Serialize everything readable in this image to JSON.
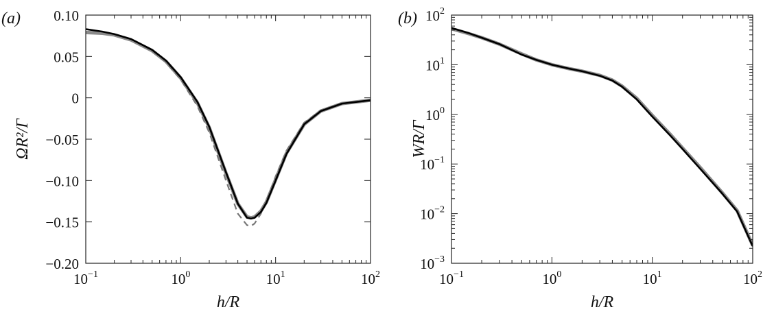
{
  "chart_data": [
    {
      "type": "line",
      "panel_label": "(a)",
      "x_label": "h/R",
      "y_label": "ΩR²/Γ",
      "xscale": "log",
      "yscale": "linear",
      "xlim": [
        0.1,
        100
      ],
      "ylim": [
        -0.2,
        0.1
      ],
      "xticks": [
        {
          "value": 0.1,
          "label": "10",
          "exponent": "−1"
        },
        {
          "value": 1,
          "label": "10",
          "exponent": "0"
        },
        {
          "value": 10,
          "label": "10",
          "exponent": "1"
        },
        {
          "value": 100,
          "label": "10",
          "exponent": "2"
        }
      ],
      "yticks": [
        {
          "value": 0.1,
          "label": "0.10"
        },
        0.05,
        0,
        {
          "value": -0.05,
          "label": "−0.05"
        },
        {
          "value": -0.1,
          "label": "−0.10"
        },
        {
          "value": -0.15,
          "label": "−0.15"
        },
        {
          "value": -0.2,
          "label": "−0.20"
        }
      ],
      "x": [
        0.1,
        0.15,
        0.2,
        0.3,
        0.5,
        0.7,
        1,
        1.5,
        2,
        3,
        4,
        5,
        5.5,
        6,
        7,
        8,
        10,
        13,
        20,
        30,
        50,
        100
      ],
      "series": [
        {
          "color": "#8a8a8a",
          "linestyle": "solid",
          "values": [
            0.079,
            0.078,
            0.076,
            0.07,
            0.057,
            0.044,
            0.024,
            -0.006,
            -0.036,
            -0.091,
            -0.128,
            -0.144,
            -0.145,
            -0.144,
            -0.137,
            -0.126,
            -0.099,
            -0.067,
            -0.032,
            -0.016,
            -0.007,
            -0.003
          ]
        },
        {
          "color": "#777777",
          "linestyle": "dashed",
          "values": [
            0.083,
            0.08,
            0.077,
            0.071,
            0.057,
            0.043,
            0.022,
            -0.01,
            -0.042,
            -0.1,
            -0.14,
            -0.154,
            -0.155,
            -0.152,
            -0.14,
            -0.125,
            -0.095,
            -0.064,
            -0.03,
            -0.015,
            -0.007,
            -0.003
          ]
        },
        {
          "color": "#000000",
          "linestyle": "solid",
          "values": [
            0.083,
            0.08,
            0.077,
            0.071,
            0.058,
            0.045,
            0.025,
            -0.005,
            -0.035,
            -0.09,
            -0.128,
            -0.145,
            -0.146,
            -0.145,
            -0.138,
            -0.127,
            -0.1,
            -0.068,
            -0.032,
            -0.016,
            -0.007,
            -0.003
          ]
        }
      ]
    },
    {
      "type": "line",
      "panel_label": "(b)",
      "x_label": "h/R",
      "y_label": "WR/Γ",
      "xscale": "log",
      "yscale": "log",
      "xlim": [
        0.1,
        100
      ],
      "ylim": [
        0.001,
        100
      ],
      "xticks": [
        {
          "value": 0.1,
          "label": "10",
          "exponent": "−1"
        },
        {
          "value": 1,
          "label": "10",
          "exponent": "0"
        },
        {
          "value": 10,
          "label": "10",
          "exponent": "1"
        },
        {
          "value": 100,
          "label": "10",
          "exponent": "2"
        }
      ],
      "yticks": [
        {
          "value": 100,
          "label": "10",
          "exponent": "2"
        },
        {
          "value": 10,
          "label": "10",
          "exponent": "1"
        },
        {
          "value": 1,
          "label": "10",
          "exponent": "0"
        },
        {
          "value": 0.1,
          "label": "10",
          "exponent": "−1"
        },
        {
          "value": 0.01,
          "label": "10",
          "exponent": "−2"
        },
        {
          "value": 0.001,
          "label": "10",
          "exponent": "−3"
        }
      ],
      "x": [
        0.1,
        0.15,
        0.2,
        0.3,
        0.5,
        0.7,
        1,
        1.5,
        2,
        3,
        4,
        5,
        7,
        10,
        15,
        20,
        30,
        50,
        70,
        100
      ],
      "series": [
        {
          "color": "#8a8a8a",
          "linestyle": "solid",
          "values": [
            53,
            42,
            35,
            26,
            16.5,
            12.5,
            10,
            8.3,
            7.4,
            6.1,
            4.9,
            3.7,
            2.1,
            0.95,
            0.4,
            0.21,
            0.085,
            0.026,
            0.0115,
            0.0023
          ]
        },
        {
          "color": "#000000",
          "linestyle": "solid",
          "values": [
            55,
            43,
            35,
            26,
            16,
            12.5,
            10,
            8.3,
            7.4,
            6.0,
            4.8,
            3.6,
            2.0,
            0.9,
            0.38,
            0.2,
            0.08,
            0.025,
            0.011,
            0.0022
          ]
        }
      ]
    }
  ]
}
